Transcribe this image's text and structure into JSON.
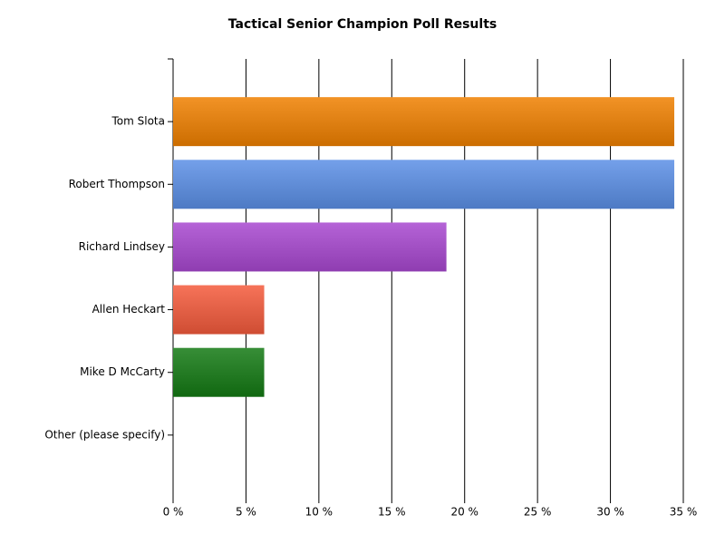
{
  "chart_data": {
    "type": "bar",
    "orientation": "horizontal",
    "title": "Tactical Senior Champion Poll Results",
    "categories": [
      "Tom Slota",
      "Robert Thompson",
      "Richard Lindsey",
      "Allen Heckart",
      "Mike D McCarty",
      "Other (please specify)"
    ],
    "values": [
      34.38,
      34.38,
      18.75,
      6.25,
      6.25,
      0
    ],
    "colors": [
      "#f08000",
      "#5b8fe6",
      "#a848d0",
      "#f45a3c",
      "#147a14",
      "#999999"
    ],
    "xlim": [
      0,
      35
    ],
    "xticks": [
      {
        "value": 0,
        "label": "0 %"
      },
      {
        "value": 5,
        "label": "5 %"
      },
      {
        "value": 10,
        "label": "10 %"
      },
      {
        "value": 15,
        "label": "15 %"
      },
      {
        "value": 20,
        "label": "20 %"
      },
      {
        "value": 25,
        "label": "25 %"
      },
      {
        "value": 30,
        "label": "30 %"
      },
      {
        "value": 35,
        "label": "35 %"
      }
    ],
    "grid": true
  }
}
